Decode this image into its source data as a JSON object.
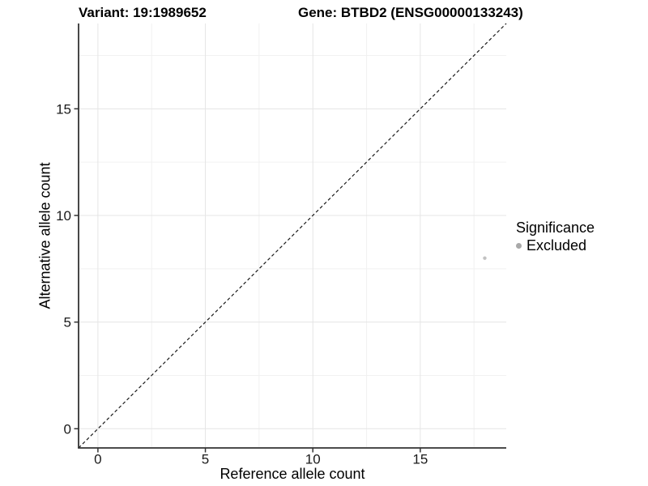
{
  "header": {
    "variant_title": "Variant: 19:1989652",
    "gene_title": "Gene: BTBD2 (ENSG00000133243)"
  },
  "chart_data": {
    "type": "scatter",
    "xlabel": "Reference allele count",
    "ylabel": "Alternative allele count",
    "xlim": [
      -0.9,
      19.0
    ],
    "ylim": [
      -0.9,
      19.0
    ],
    "xticks": [
      0,
      5,
      10,
      15
    ],
    "yticks": [
      0,
      5,
      10,
      15
    ],
    "xticks_minor": [
      2.5,
      7.5,
      12.5,
      17.5
    ],
    "yticks_minor": [
      2.5,
      7.5,
      12.5,
      17.5
    ],
    "grid": "major+minor",
    "identity_line": {
      "equation": "y = x",
      "style": "dashed"
    },
    "points": [
      {
        "x": 18,
        "y": 8,
        "significance": "Excluded",
        "color": "#c2c2c2"
      }
    ],
    "legend": {
      "title": "Significance",
      "position": "right",
      "items": [
        {
          "label": "Excluded",
          "color": "#a9a9a9"
        }
      ]
    }
  },
  "colors": {
    "background": "#ffffff",
    "axis_line": "#333333",
    "tick_mark": "#333333",
    "grid_major": "#e5e5e5",
    "grid_minor": "#f1f1f1",
    "identity_line": "#1a1a1a",
    "title_text": "#000000",
    "tick_label": "#1a1a1a"
  }
}
